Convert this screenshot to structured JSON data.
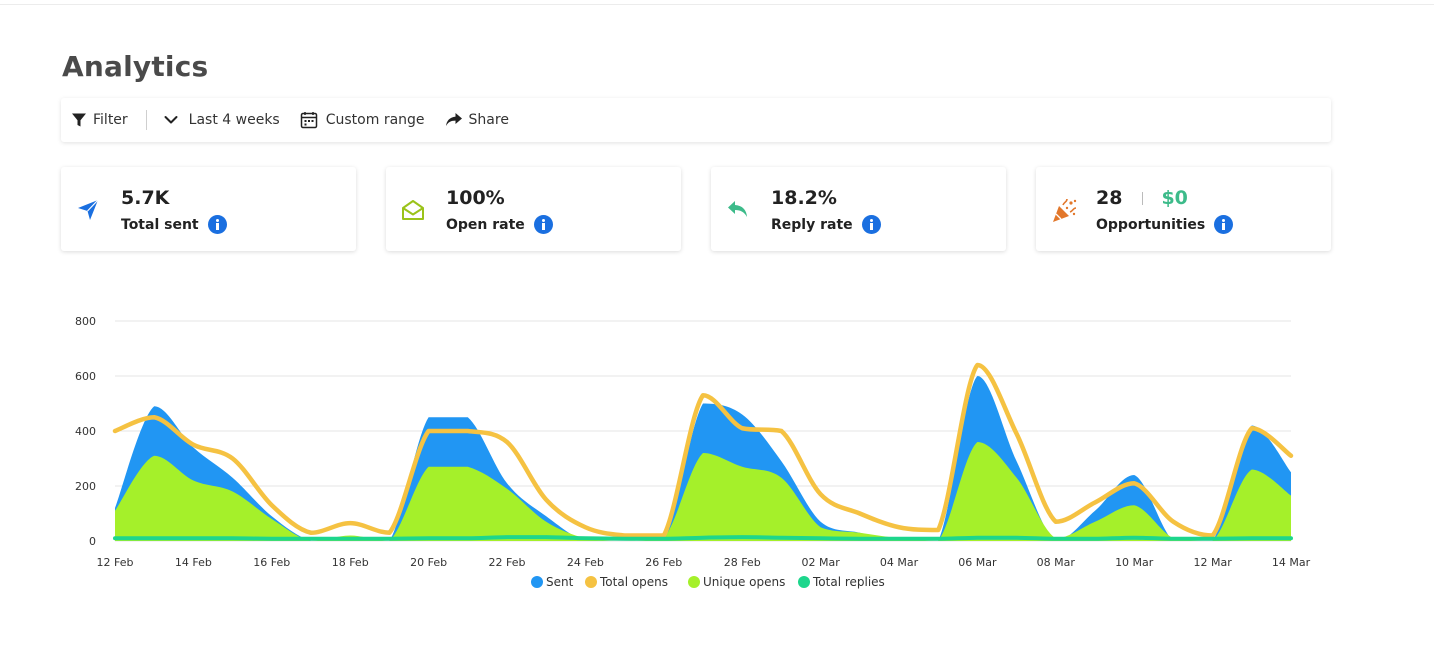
{
  "page": {
    "title": "Analytics"
  },
  "toolbar": {
    "filter_label": "Filter",
    "range_label": "Last 4 weeks",
    "custom_label": "Custom range",
    "share_label": "Share"
  },
  "cards": [
    {
      "value": "5.7K",
      "label": "Total sent",
      "icon": "paper-plane-icon",
      "color": "#1a6fe0"
    },
    {
      "value": "100%",
      "label": "Open rate",
      "icon": "open-envelope-icon",
      "color": "#9bc31a"
    },
    {
      "value": "18.2%",
      "label": "Reply rate",
      "icon": "reply-arrow-icon",
      "color": "#3dbb8a"
    },
    {
      "value": "28",
      "money": "$0",
      "label": "Opportunities",
      "icon": "party-popper-icon",
      "color": "#e2772b"
    }
  ],
  "chart_data": {
    "type": "area",
    "x": [
      "12 Feb",
      "13 Feb",
      "14 Feb",
      "15 Feb",
      "16 Feb",
      "17 Feb",
      "18 Feb",
      "19 Feb",
      "20 Feb",
      "21 Feb",
      "22 Feb",
      "23 Feb",
      "24 Feb",
      "25 Feb",
      "26 Feb",
      "27 Feb",
      "28 Feb",
      "01 Mar",
      "02 Mar",
      "03 Mar",
      "04 Mar",
      "05 Mar",
      "06 Mar",
      "07 Mar",
      "08 Mar",
      "09 Mar",
      "10 Mar",
      "11 Mar",
      "12 Mar",
      "13 Mar",
      "14 Mar"
    ],
    "xticks": [
      "12 Feb",
      "14 Feb",
      "16 Feb",
      "18 Feb",
      "20 Feb",
      "22 Feb",
      "24 Feb",
      "26 Feb",
      "28 Feb",
      "02 Mar",
      "04 Mar",
      "06 Mar",
      "08 Mar",
      "10 Mar",
      "12 Mar",
      "14 Mar"
    ],
    "yticks": [
      0,
      200,
      400,
      600,
      800
    ],
    "ylim": [
      0,
      800
    ],
    "series": [
      {
        "name": "Sent",
        "color": "#2196f3",
        "kind": "area",
        "values": [
          120,
          490,
          340,
          230,
          90,
          0,
          0,
          0,
          450,
          450,
          210,
          90,
          0,
          0,
          0,
          500,
          460,
          290,
          70,
          30,
          0,
          0,
          600,
          290,
          0,
          110,
          240,
          0,
          0,
          420,
          250
        ]
      },
      {
        "name": "Total opens",
        "color": "#f5c242",
        "kind": "line",
        "values": [
          400,
          450,
          350,
          300,
          130,
          30,
          65,
          30,
          400,
          400,
          360,
          150,
          50,
          20,
          20,
          530,
          410,
          400,
          170,
          100,
          50,
          40,
          640,
          390,
          70,
          140,
          210,
          70,
          20,
          410,
          310
        ]
      },
      {
        "name": "Unique opens",
        "color": "#a5f02a",
        "kind": "area",
        "values": [
          110,
          310,
          220,
          180,
          80,
          0,
          20,
          0,
          270,
          270,
          190,
          70,
          10,
          0,
          10,
          320,
          270,
          230,
          50,
          30,
          10,
          0,
          360,
          230,
          10,
          70,
          130,
          10,
          0,
          260,
          165
        ]
      },
      {
        "name": "Total replies",
        "color": "#1dd68c",
        "kind": "line",
        "values": [
          10,
          10,
          10,
          10,
          8,
          8,
          8,
          8,
          10,
          10,
          14,
          14,
          10,
          8,
          8,
          12,
          14,
          12,
          10,
          8,
          8,
          8,
          12,
          12,
          8,
          8,
          12,
          8,
          8,
          10,
          10
        ]
      }
    ]
  }
}
